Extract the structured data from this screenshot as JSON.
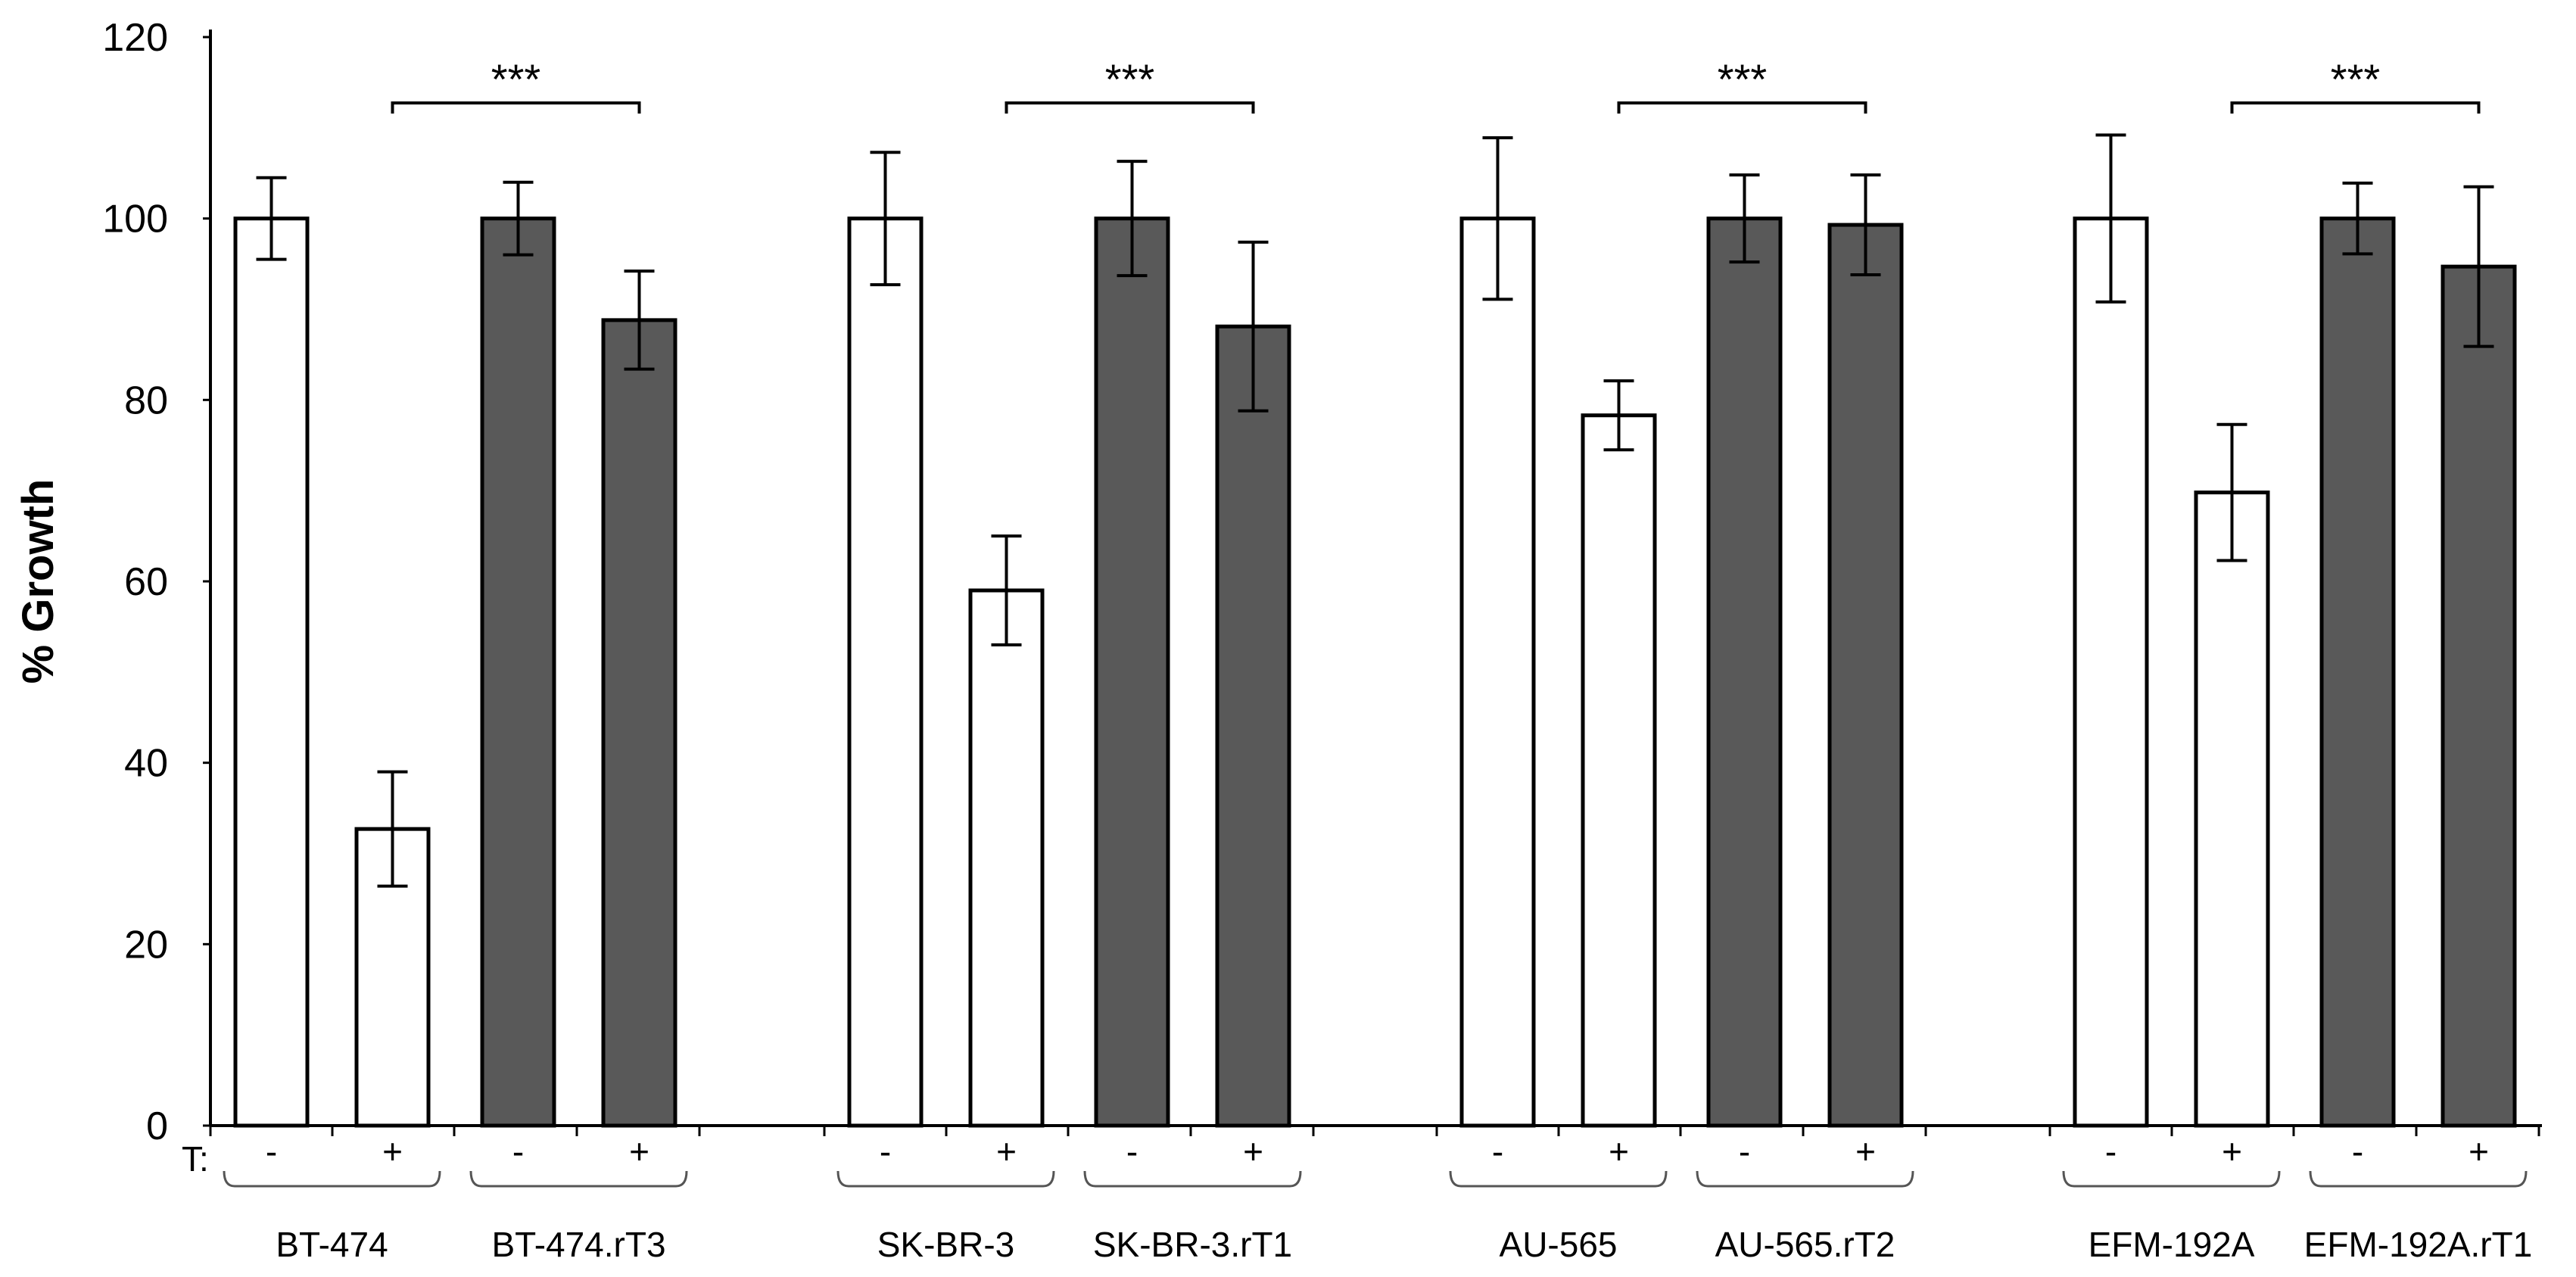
{
  "chart_data": {
    "type": "bar",
    "title": "",
    "xlabel": "",
    "ylabel": "% Growth",
    "ylim": [
      0,
      120
    ],
    "yticks": [
      "0",
      "20",
      "40",
      "60",
      "80",
      "100",
      "120"
    ],
    "treatment_row_label": "T:",
    "significance_label": "***",
    "colors": {
      "parental": "#ffffff",
      "resistant": "#595959",
      "stroke": "#000000"
    },
    "groups": [
      {
        "pairs": [
          {
            "cell_line": "BT-474",
            "kind": "parental",
            "bars": [
              {
                "treatment": "-",
                "value": 100,
                "error": 4.5
              },
              {
                "treatment": "+",
                "value": 32.7,
                "error": 6.3
              }
            ]
          },
          {
            "cell_line": "BT-474.rT3",
            "kind": "resistant",
            "bars": [
              {
                "treatment": "-",
                "value": 100,
                "error": 4
              },
              {
                "treatment": "+",
                "value": 88.8,
                "error": 5.4
              }
            ]
          }
        ]
      },
      {
        "pairs": [
          {
            "cell_line": "SK-BR-3",
            "kind": "parental",
            "bars": [
              {
                "treatment": "-",
                "value": 100,
                "error": 7.3
              },
              {
                "treatment": "+",
                "value": 59,
                "error": 6
              }
            ]
          },
          {
            "cell_line": "SK-BR-3.rT1",
            "kind": "resistant",
            "bars": [
              {
                "treatment": "-",
                "value": 100,
                "error": 6.3
              },
              {
                "treatment": "+",
                "value": 88.1,
                "error": 9.3
              }
            ]
          }
        ]
      },
      {
        "pairs": [
          {
            "cell_line": "AU-565",
            "kind": "parental",
            "bars": [
              {
                "treatment": "-",
                "value": 100,
                "error": 8.9
              },
              {
                "treatment": "+",
                "value": 78.3,
                "error": 3.8
              }
            ]
          },
          {
            "cell_line": "AU-565.rT2",
            "kind": "resistant",
            "bars": [
              {
                "treatment": "-",
                "value": 100,
                "error": 4.8
              },
              {
                "treatment": "+",
                "value": 99.3,
                "error": 5.5
              }
            ]
          }
        ]
      },
      {
        "pairs": [
          {
            "cell_line": "EFM-192A",
            "kind": "parental",
            "bars": [
              {
                "treatment": "-",
                "value": 100,
                "error": 9.2
              },
              {
                "treatment": "+",
                "value": 69.8,
                "error": 7.5
              }
            ]
          },
          {
            "cell_line": "EFM-192A.rT1",
            "kind": "resistant",
            "bars": [
              {
                "treatment": "-",
                "value": 100,
                "error": 3.9
              },
              {
                "treatment": "+",
                "value": 94.7,
                "error": 8.8
              }
            ]
          }
        ]
      }
    ]
  }
}
